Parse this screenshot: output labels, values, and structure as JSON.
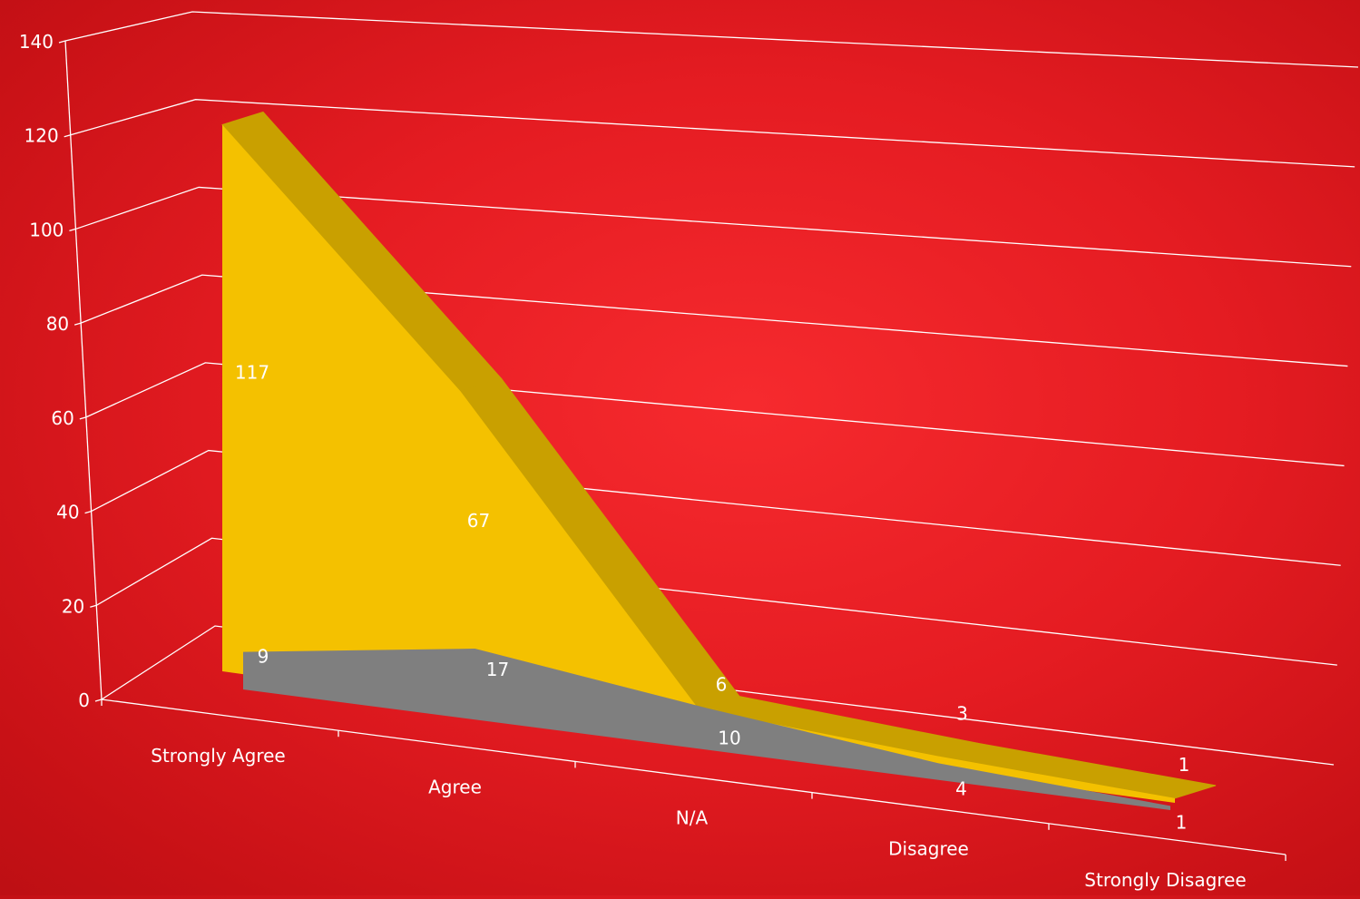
{
  "chart_data": {
    "type": "area",
    "categories": [
      "Strongly Agree",
      "Agree",
      "N/A",
      "Disagree",
      "Strongly Disagree"
    ],
    "series": [
      {
        "values": [
          9,
          17,
          10,
          4,
          1
        ],
        "color": "#7f7f7f"
      },
      {
        "values": [
          117,
          67,
          6,
          3,
          1
        ],
        "color": "#f4c100"
      }
    ],
    "data_labels": true,
    "ylim": [
      0,
      140
    ],
    "ytick_step": 20,
    "grid": true,
    "legend": "none",
    "title": "",
    "xlabel": "",
    "ylabel": ""
  }
}
